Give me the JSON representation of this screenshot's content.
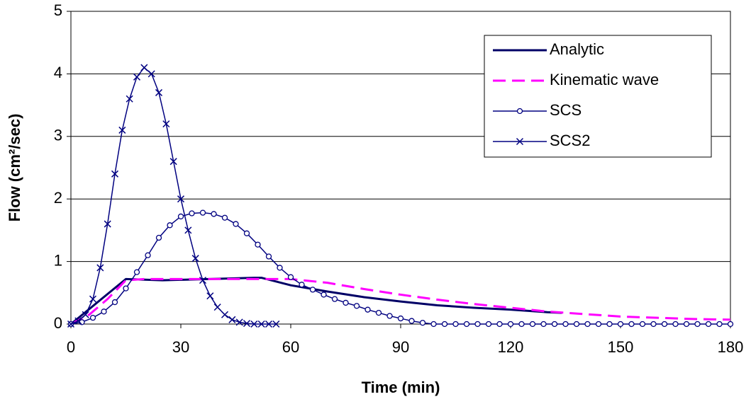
{
  "chart_data": {
    "type": "line",
    "xlabel": "Time (min)",
    "ylabel": "Flow (cm²/sec)",
    "xlim": [
      0,
      180
    ],
    "xticks": [
      0,
      30,
      60,
      90,
      120,
      150,
      180
    ],
    "ylim": [
      0,
      5
    ],
    "yticks": [
      0,
      1,
      2,
      3,
      4,
      5
    ],
    "grid": true,
    "legend": "upper right",
    "series": [
      {
        "name": "Analytic",
        "color": "#000066",
        "style": "solid",
        "marker": "none",
        "x": [
          0,
          15,
          20,
          25,
          50,
          52,
          60,
          70,
          80,
          90,
          100,
          110,
          120,
          130,
          134
        ],
        "values": [
          0,
          0.72,
          0.71,
          0.7,
          0.74,
          0.74,
          0.62,
          0.52,
          0.43,
          0.36,
          0.3,
          0.26,
          0.23,
          0.19,
          0.18
        ]
      },
      {
        "name": "Kinematic wave",
        "color": "#ff00ff",
        "style": "dashed",
        "marker": "none",
        "x": [
          0,
          5,
          10,
          15,
          20,
          50,
          60,
          70,
          80,
          90,
          100,
          110,
          120,
          130,
          140,
          150,
          160,
          170,
          180
        ],
        "values": [
          0,
          0.15,
          0.4,
          0.7,
          0.72,
          0.72,
          0.72,
          0.66,
          0.56,
          0.47,
          0.39,
          0.32,
          0.26,
          0.2,
          0.16,
          0.12,
          0.1,
          0.08,
          0.07
        ]
      },
      {
        "name": "SCS",
        "color": "#000080",
        "style": "thin",
        "marker": "circle",
        "x": [
          0,
          3,
          6,
          9,
          12,
          15,
          18,
          21,
          24,
          27,
          30,
          33,
          36,
          39,
          42,
          45,
          48,
          51,
          54,
          57,
          60,
          63,
          66,
          69,
          72,
          75,
          78,
          81,
          84,
          87,
          90,
          93,
          96,
          99,
          102,
          105,
          108,
          111,
          114,
          117,
          120,
          123,
          126,
          129,
          132,
          135,
          138,
          141,
          144,
          147,
          150,
          153,
          156,
          159,
          162,
          165,
          168,
          171,
          174,
          177,
          180
        ],
        "values": [
          0,
          0.03,
          0.1,
          0.2,
          0.35,
          0.57,
          0.83,
          1.1,
          1.38,
          1.58,
          1.72,
          1.77,
          1.78,
          1.76,
          1.7,
          1.6,
          1.45,
          1.27,
          1.08,
          0.9,
          0.75,
          0.63,
          0.55,
          0.47,
          0.4,
          0.34,
          0.29,
          0.23,
          0.18,
          0.13,
          0.09,
          0.05,
          0.02,
          0,
          0,
          0,
          0,
          0,
          0,
          0,
          0,
          0,
          0,
          0,
          0,
          0,
          0,
          0,
          0,
          0,
          0,
          0,
          0,
          0,
          0,
          0,
          0,
          0,
          0,
          0,
          0
        ]
      },
      {
        "name": "SCS2",
        "color": "#000080",
        "style": "thin",
        "marker": "x",
        "x": [
          0,
          2,
          4,
          6,
          8,
          10,
          12,
          14,
          16,
          18,
          20,
          22,
          24,
          26,
          28,
          30,
          32,
          34,
          36,
          38,
          40,
          42,
          44,
          46,
          48,
          50,
          52,
          54,
          56
        ],
        "values": [
          0,
          0.05,
          0.15,
          0.4,
          0.9,
          1.6,
          2.4,
          3.1,
          3.6,
          3.95,
          4.1,
          4.0,
          3.7,
          3.2,
          2.6,
          2.0,
          1.5,
          1.05,
          0.7,
          0.45,
          0.27,
          0.15,
          0.07,
          0.03,
          0.01,
          0,
          0,
          0,
          0
        ]
      }
    ]
  }
}
